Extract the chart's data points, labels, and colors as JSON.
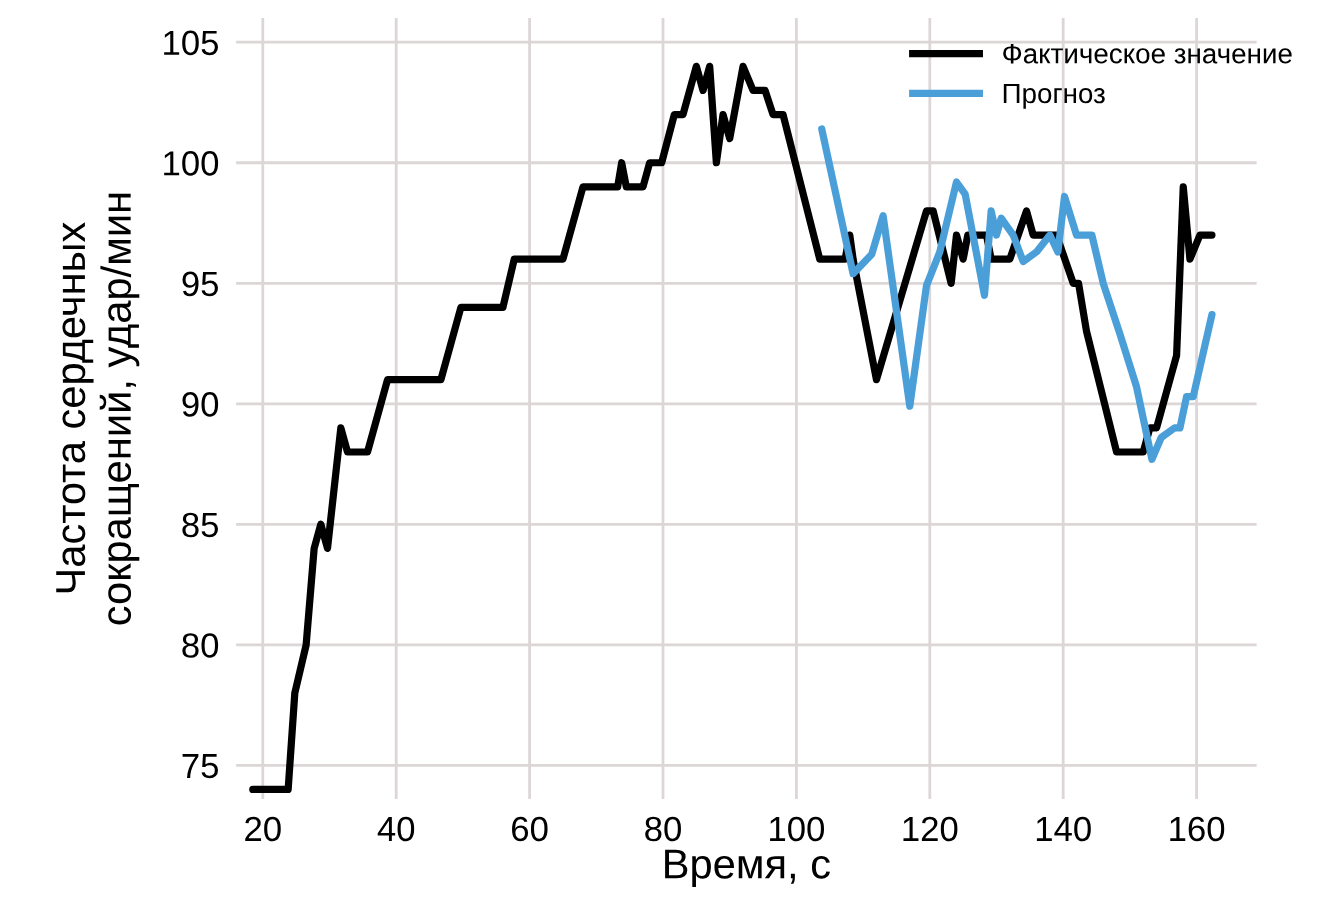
{
  "chart_data": {
    "type": "line",
    "xlabel": "Время, с",
    "ylabel": "Частота сердечных\nсокращений, удар/мин",
    "xlim": [
      16,
      169
    ],
    "ylim": [
      73.6,
      106
    ],
    "xticks": [
      20,
      40,
      60,
      80,
      100,
      120,
      140,
      160
    ],
    "yticks": [
      75,
      80,
      85,
      90,
      95,
      100,
      105
    ],
    "grid": true,
    "legend": "top right",
    "line_style": "solid",
    "marker": "none",
    "series": [
      {
        "name": "Фактическое значение",
        "color": "#000000",
        "x": [
          18.5,
          23.8,
          24.8,
          26.5,
          27.7,
          28.7,
          29.7,
          31.7,
          32.7,
          35.7,
          38.7,
          46.7,
          49.7,
          56,
          57.7,
          65,
          68,
          73.2,
          73.8,
          74.5,
          77,
          78,
          79.8,
          81.7,
          83,
          85,
          86,
          87,
          88,
          89,
          90,
          92,
          93.5,
          95.3,
          96.5,
          98,
          103.5,
          107.3,
          108,
          108.5,
          112,
          119.5,
          120.5,
          123.2,
          124,
          125,
          125.7,
          128.5,
          129.2,
          132,
          134.5,
          135.5,
          139,
          141.5,
          142.3,
          143.5,
          148,
          152,
          153,
          154,
          157,
          158,
          159,
          160.5,
          162.3
        ],
        "values": [
          74,
          74,
          78,
          80,
          84,
          85,
          84,
          89,
          88,
          88,
          91,
          91,
          94,
          94,
          96,
          96,
          99,
          99,
          100,
          99,
          99,
          100,
          100,
          102,
          102,
          104,
          103,
          104,
          100,
          102,
          101,
          104,
          103,
          103,
          102,
          102,
          96,
          96,
          97,
          96,
          91,
          98,
          98,
          95,
          97,
          96,
          97,
          97,
          96,
          96,
          98,
          97,
          97,
          95,
          95,
          93,
          88,
          88,
          89,
          89,
          92,
          99,
          96,
          97,
          97
        ]
      },
      {
        "name": "Прогноз",
        "color": "#4a9fd8",
        "x": [
          103.8,
          108.5,
          111.3,
          113,
          117,
          119.5,
          121.5,
          124,
          125.3,
          128.2,
          129.2,
          130,
          130.7,
          132.5,
          134,
          136,
          138,
          139.2,
          140.2,
          142,
          144.3,
          146,
          148.5,
          151,
          153.3,
          154.7,
          156.7,
          157.5,
          158.5,
          159.5,
          162.3
        ],
        "values": [
          101.4,
          95.4,
          96.2,
          97.8,
          89.9,
          94.9,
          96.3,
          99.2,
          98.7,
          94.5,
          98,
          97,
          97.7,
          97,
          95.9,
          96.3,
          97,
          96.3,
          98.6,
          97,
          97,
          95,
          92.9,
          90.7,
          87.7,
          88.6,
          89,
          89,
          90.3,
          90.3,
          93.7
        ]
      }
    ]
  }
}
